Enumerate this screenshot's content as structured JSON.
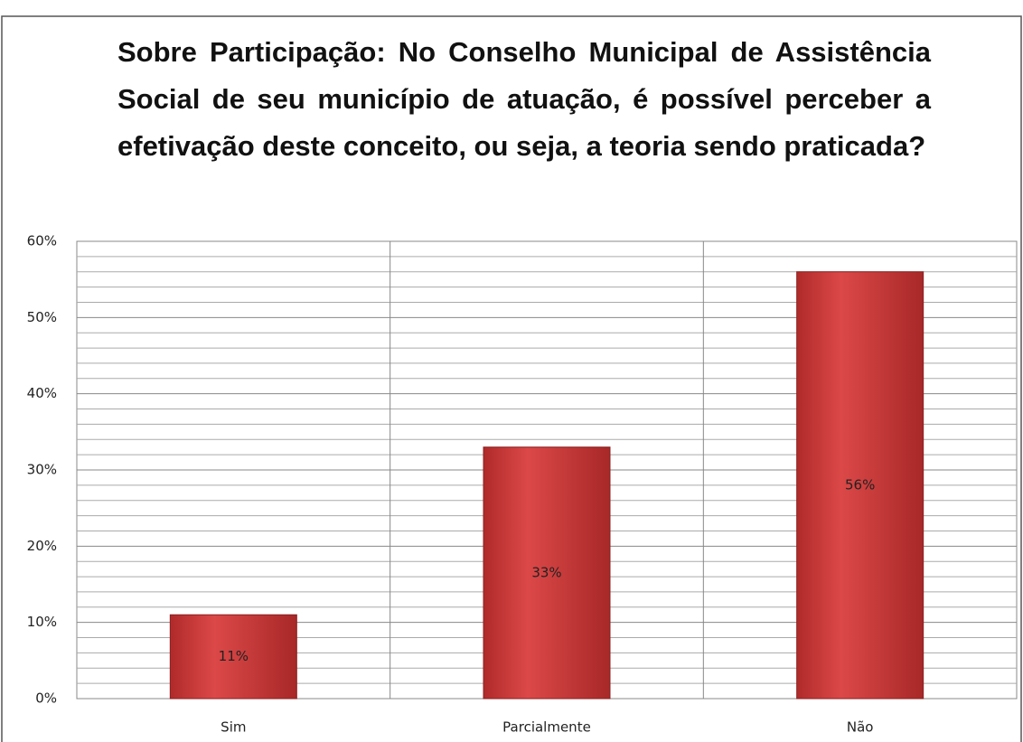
{
  "chart_data": {
    "type": "bar",
    "title": "Sobre Participação: No Conselho Municipal de Assistência Social de seu município de atuação, é possível perceber a efetivação deste conceito, ou seja, a teoria sendo praticada?",
    "categories": [
      "Sim",
      "Parcialmente",
      "Não"
    ],
    "values": [
      11,
      33,
      56
    ],
    "value_labels": [
      "11%",
      "33%",
      "56%"
    ],
    "color": "#c93a3a",
    "ylim": [
      0,
      60
    ],
    "yticks": [
      {
        "value": 0,
        "label": "0%"
      },
      {
        "value": 10,
        "label": "10%"
      },
      {
        "value": 20,
        "label": "20%"
      },
      {
        "value": 30,
        "label": "30%"
      },
      {
        "value": 40,
        "label": "40%"
      },
      {
        "value": 50,
        "label": "50%"
      },
      {
        "value": 60,
        "label": "60%"
      }
    ],
    "grid": true,
    "minor_grid": true
  }
}
